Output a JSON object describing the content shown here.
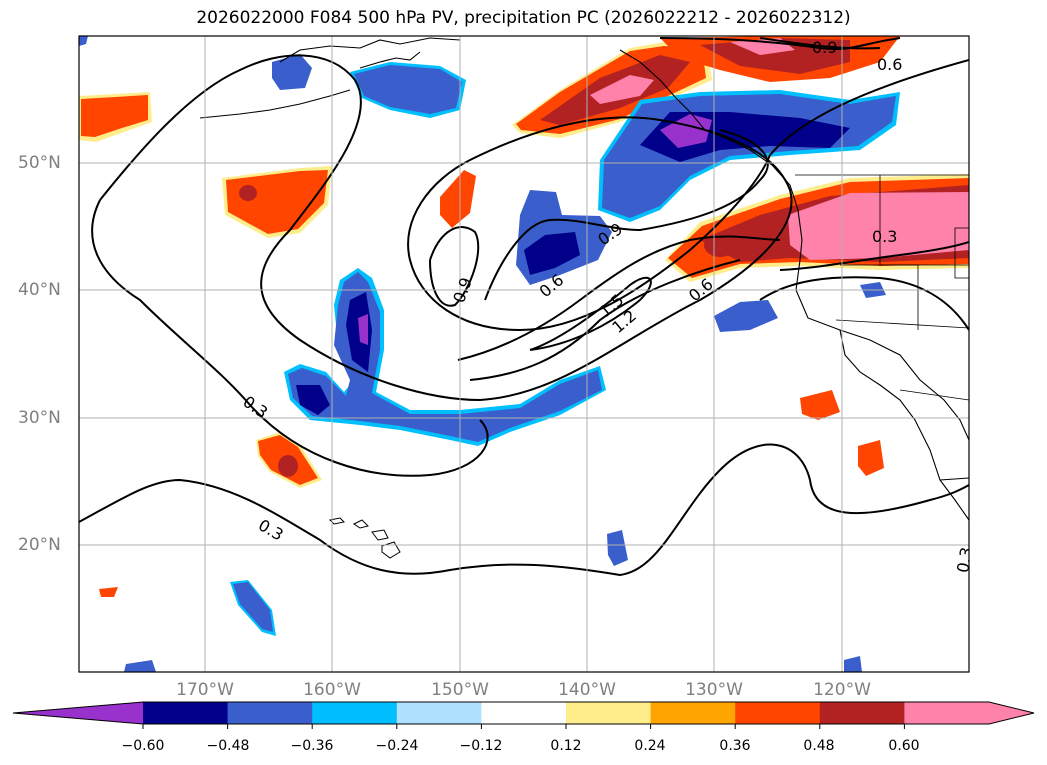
{
  "title": "2026022000 F084 500 hPa PV, precipitation PC (2026022212 - 2026022312)",
  "map": {
    "lat_labels": [
      "50°N",
      "40°N",
      "30°N",
      "20°N"
    ],
    "lon_labels": [
      "170°W",
      "160°W",
      "150°W",
      "140°W",
      "130°W",
      "120°W"
    ],
    "contour_labels": [
      "0.9",
      "0.6",
      "0.3",
      "0.9",
      "0.6",
      "0.9",
      "1.5",
      "1.2",
      "0.6",
      "0.3",
      "0.3",
      "0.3"
    ]
  },
  "colorbar": {
    "colors": [
      "#9932CC",
      "#00008B",
      "#3A5FCD",
      "#00BFFF",
      "#B0E2FF",
      "#FFFFFF",
      "#FFEC8B",
      "#FFA500",
      "#FF4500",
      "#B22222",
      "#FF82AB"
    ],
    "tick_labels": [
      "−0.60",
      "−0.48",
      "−0.36",
      "−0.24",
      "−0.12",
      "0.12",
      "0.24",
      "0.36",
      "0.48",
      "0.60"
    ]
  }
}
